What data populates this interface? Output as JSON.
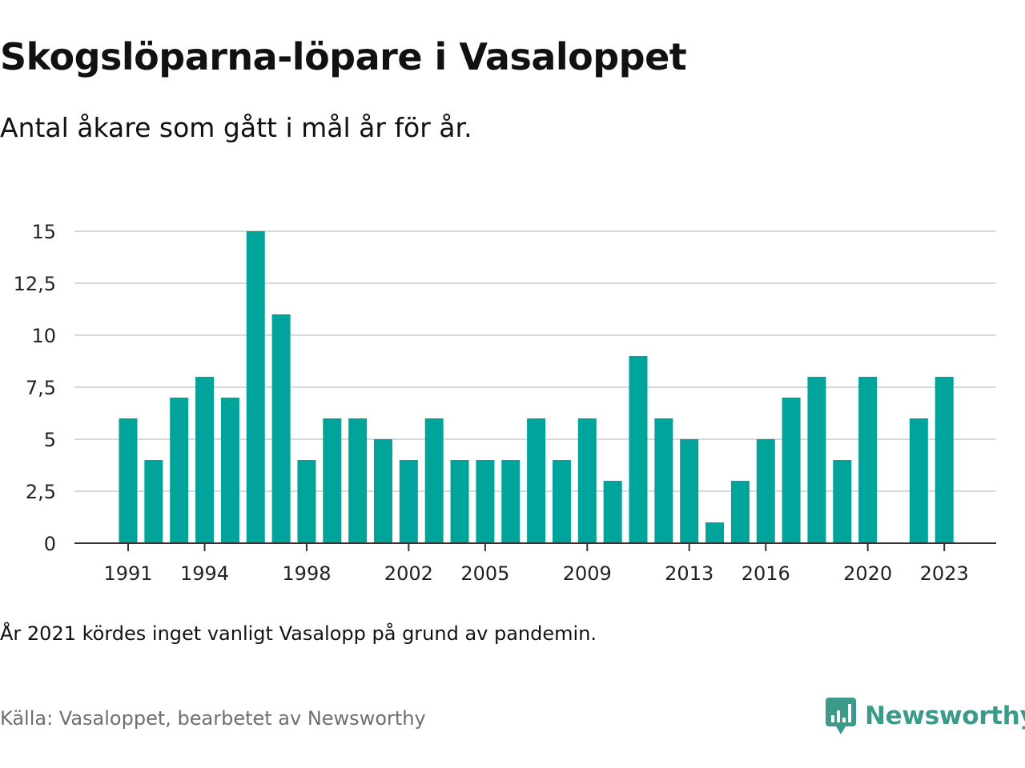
{
  "header": {
    "title": "Skogslöparna-löpare i Vasaloppet",
    "subtitle": "Antal åkare som gått i mål år för år."
  },
  "footer": {
    "note": "År 2021 kördes inget vanligt Vasalopp på grund av pandemin.",
    "source": "Källa: Vasaloppet, bearbetet av Newsworthy",
    "logo_text": "Newsworthy"
  },
  "colors": {
    "bar": "#00a49b",
    "grid": "#d9d9d9",
    "axis": "#333333",
    "logo": "#3b9a8a"
  },
  "chart_data": {
    "type": "bar",
    "title": "Skogslöparna-löpare i Vasaloppet",
    "subtitle": "Antal åkare som gått i mål år för år.",
    "xlabel": "",
    "ylabel": "",
    "ylim": [
      0,
      15
    ],
    "yticks": [
      0,
      2.5,
      5,
      7.5,
      10,
      12.5,
      15
    ],
    "ytick_labels": [
      "0",
      "2,5",
      "5",
      "7,5",
      "10",
      "12,5",
      "15"
    ],
    "xticks": [
      1991,
      1994,
      1998,
      2002,
      2005,
      2009,
      2013,
      2016,
      2020,
      2023
    ],
    "grid": true,
    "legend": "none",
    "categories": [
      1991,
      1992,
      1993,
      1994,
      1995,
      1996,
      1997,
      1998,
      1999,
      2000,
      2001,
      2002,
      2003,
      2004,
      2005,
      2006,
      2007,
      2008,
      2009,
      2010,
      2011,
      2012,
      2013,
      2014,
      2015,
      2016,
      2017,
      2018,
      2019,
      2020,
      2021,
      2022,
      2023
    ],
    "values": [
      6,
      4,
      7,
      8,
      7,
      15,
      11,
      4,
      6,
      6,
      5,
      4,
      6,
      4,
      4,
      4,
      6,
      4,
      6,
      3,
      9,
      6,
      5,
      1,
      3,
      5,
      7,
      8,
      4,
      8,
      null,
      6,
      8
    ]
  }
}
